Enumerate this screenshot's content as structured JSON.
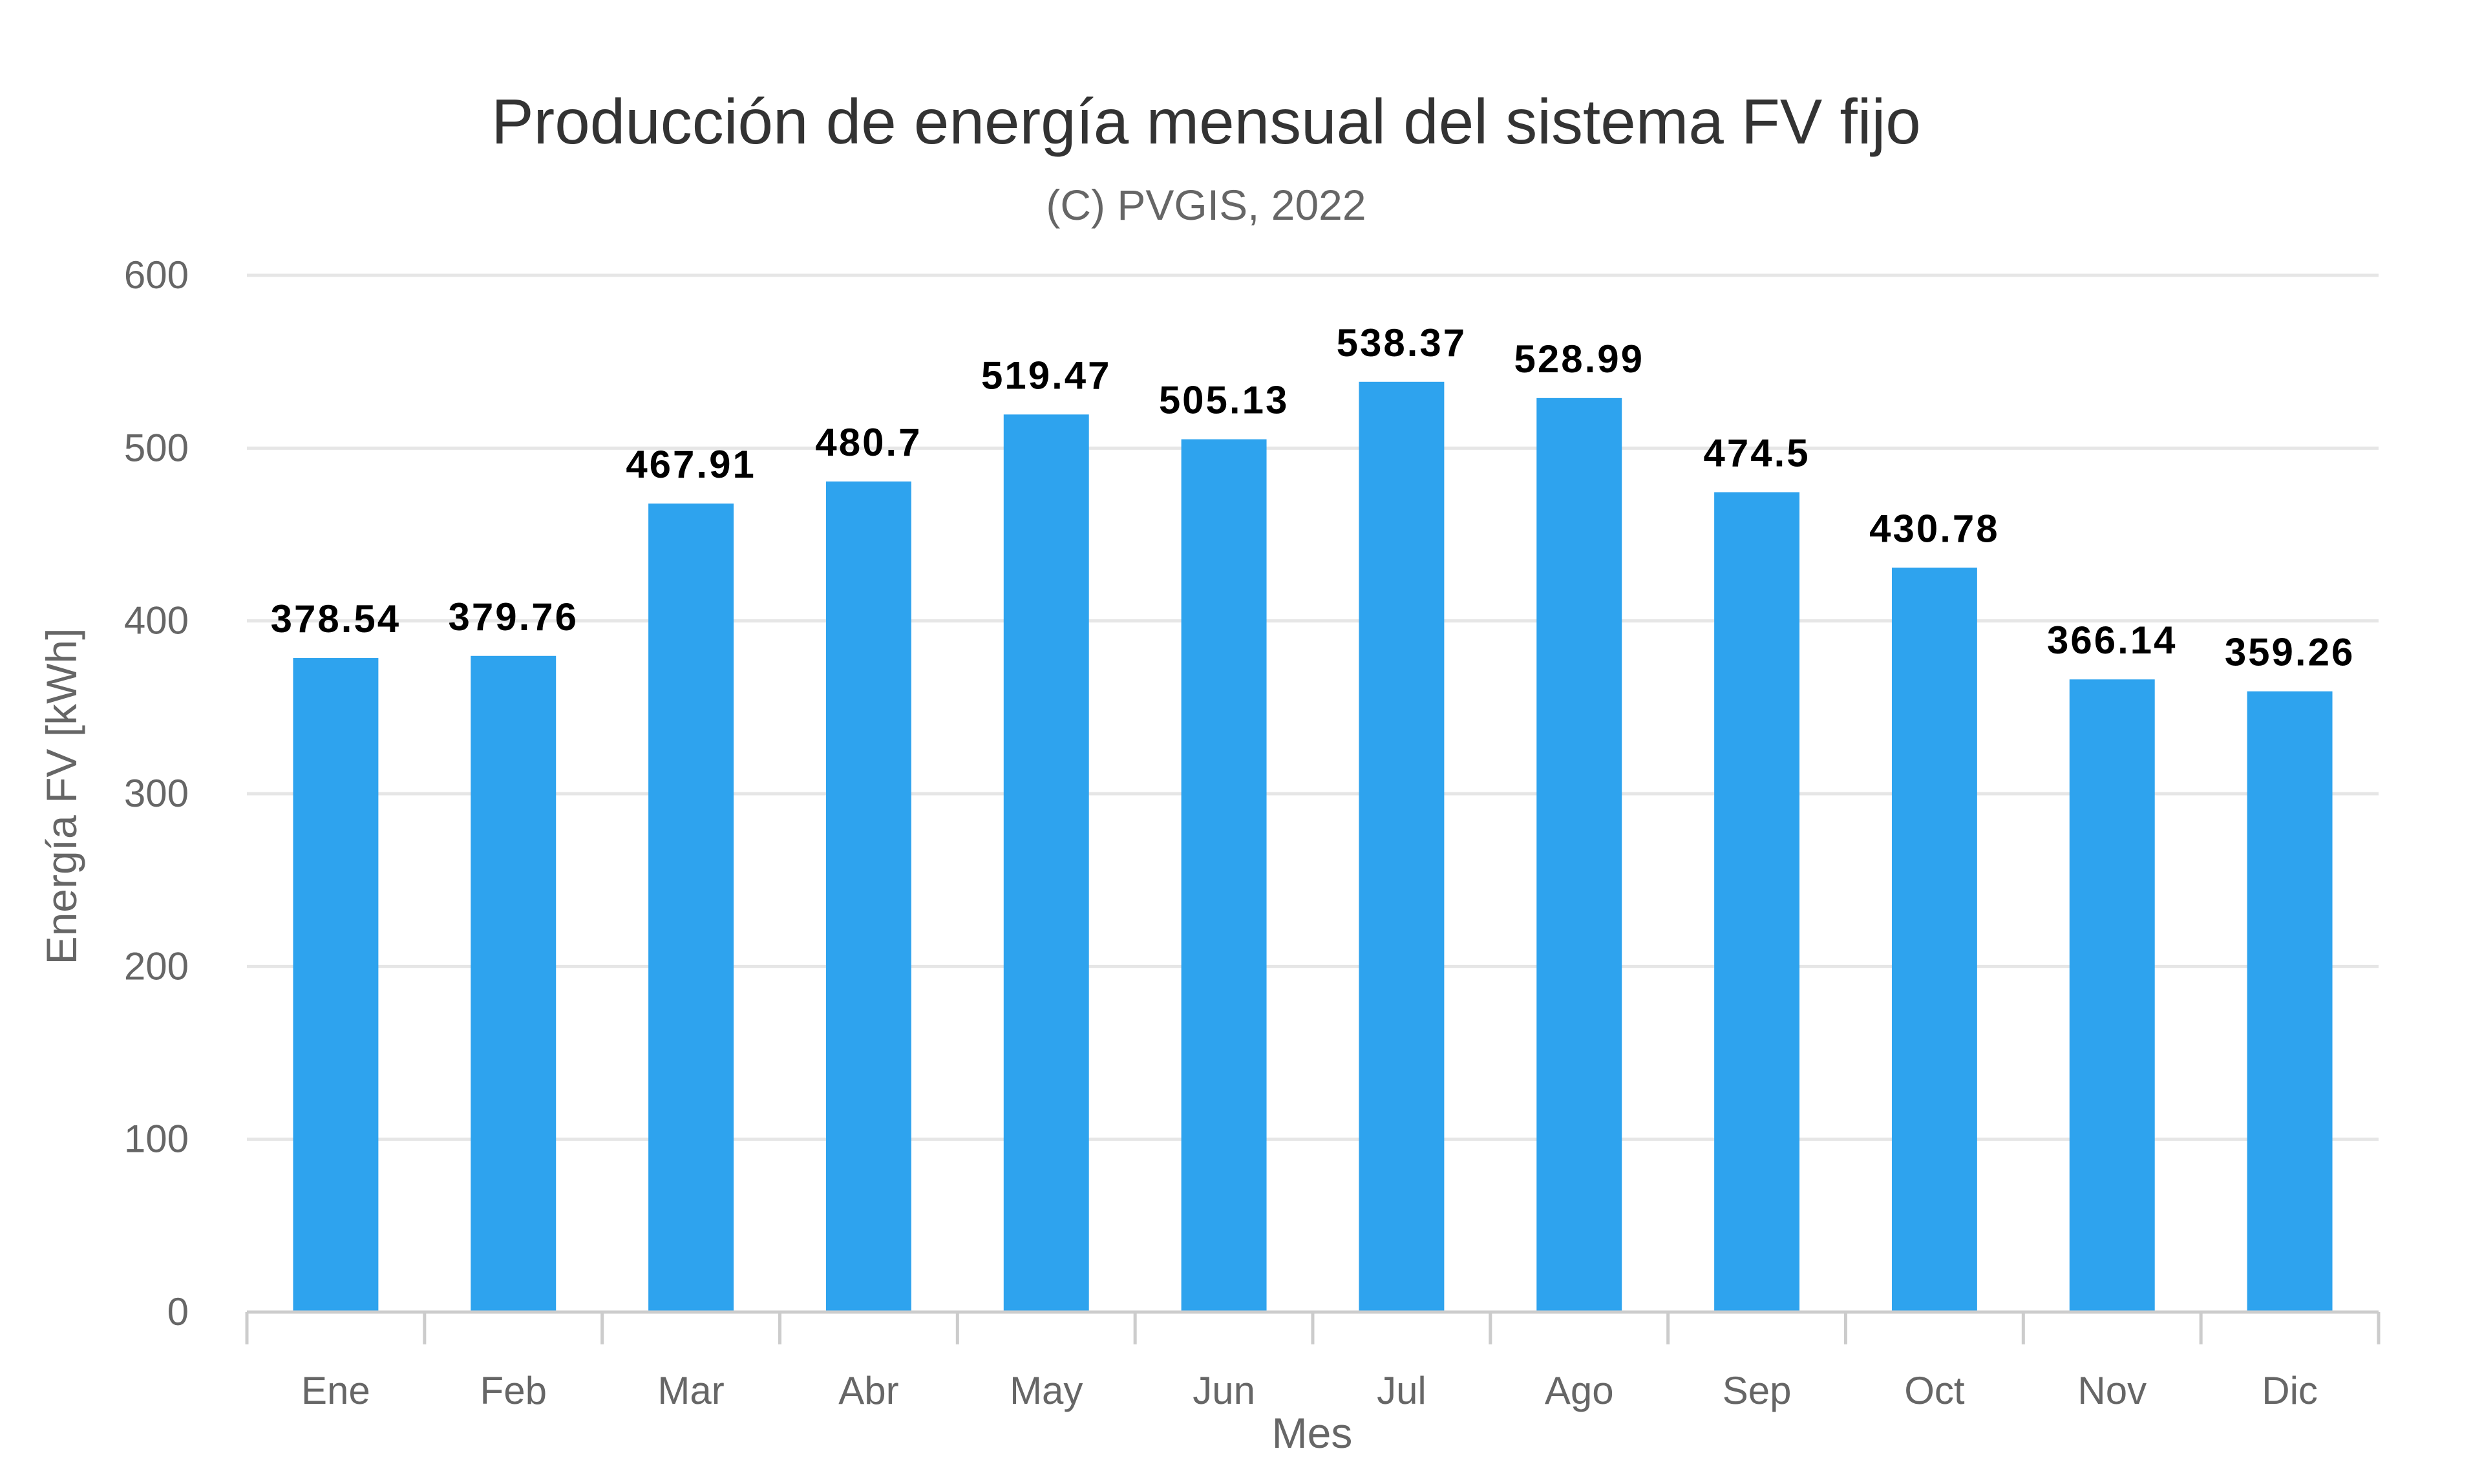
{
  "chart_data": {
    "type": "bar",
    "title": "Producción de energía mensual del sistema FV fijo",
    "subtitle": "(C) PVGIS, 2022",
    "xlabel": "Mes",
    "ylabel": "Energía FV [kWh]",
    "categories": [
      "Ene",
      "Feb",
      "Mar",
      "Abr",
      "May",
      "Jun",
      "Jul",
      "Ago",
      "Sep",
      "Oct",
      "Nov",
      "Dic"
    ],
    "values": [
      378.54,
      379.76,
      467.91,
      480.7,
      519.47,
      505.13,
      538.37,
      528.99,
      474.5,
      430.78,
      366.14,
      359.26
    ],
    "value_labels": [
      "378.54",
      "379.76",
      "467.91",
      "480.7",
      "519.47",
      "505.13",
      "538.37",
      "528.99",
      "474.5",
      "430.78",
      "366.14",
      "359.26"
    ],
    "ylim": [
      0,
      600
    ],
    "yticks": [
      0,
      100,
      200,
      300,
      400,
      500,
      600
    ],
    "grid": true,
    "legend": "none",
    "colors": {
      "bar": "#2ea3ee",
      "grid": "#e6e6e6",
      "axis": "#cccccc"
    }
  }
}
